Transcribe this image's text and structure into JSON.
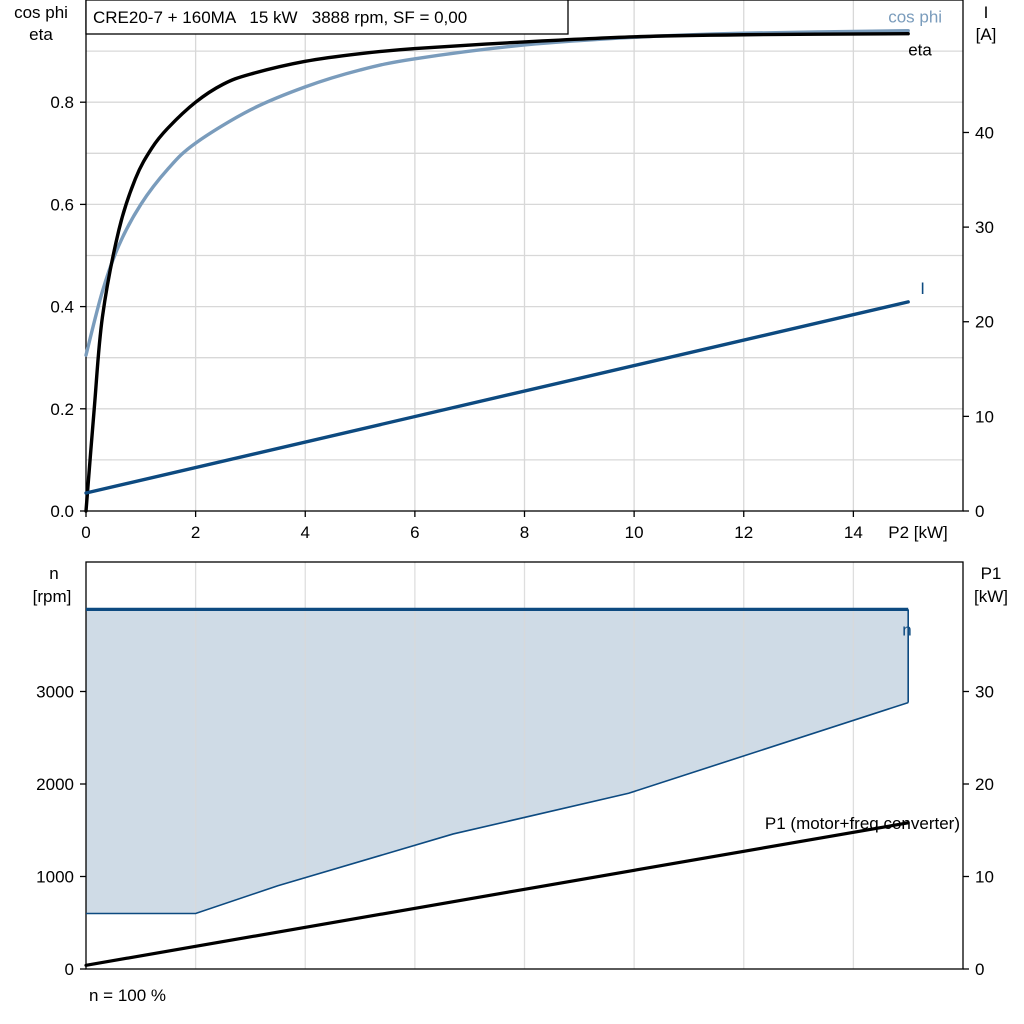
{
  "footer_note": "n = 100 %",
  "chart_data": [
    {
      "type": "line",
      "title": "CRE20-7 + 160MA   15 kW   3888 rpm, SF = 0,00",
      "xlabel": "P2 [kW]",
      "ylabel_left": [
        "cos phi",
        "eta"
      ],
      "ylabel_right": [
        "I",
        "[A]"
      ],
      "xlim": [
        0,
        16
      ],
      "ylim_left": [
        0,
        1
      ],
      "ylim_right": [
        0,
        54
      ],
      "x_ticks": [
        "0",
        "2",
        "4",
        "6",
        "8",
        "10",
        "12",
        "14"
      ],
      "y_ticks_left": [
        "0.0",
        "0.2",
        "0.4",
        "0.6",
        "0.8"
      ],
      "y_ticks_right": [
        "0",
        "10",
        "20",
        "30",
        "40"
      ],
      "grid": true,
      "series": [
        {
          "name": "eta",
          "axis": "left",
          "color": "#000000",
          "x": [
            0,
            0.15,
            0.3,
            0.6,
            0.9,
            1.2,
            1.5,
            2,
            2.5,
            3,
            4,
            5,
            6,
            8,
            10,
            12,
            15
          ],
          "y": [
            0.0,
            0.2,
            0.38,
            0.55,
            0.65,
            0.71,
            0.75,
            0.8,
            0.835,
            0.855,
            0.88,
            0.895,
            0.905,
            0.918,
            0.928,
            0.932,
            0.934
          ]
        },
        {
          "name": "cos phi",
          "axis": "left",
          "color": "#7a9cbc",
          "x": [
            0,
            0.3,
            0.6,
            1,
            1.5,
            2,
            3,
            4,
            5,
            6,
            8,
            10,
            12,
            15
          ],
          "y": [
            0.305,
            0.43,
            0.52,
            0.6,
            0.67,
            0.72,
            0.785,
            0.83,
            0.863,
            0.885,
            0.912,
            0.927,
            0.935,
            0.94
          ]
        },
        {
          "name": "I",
          "axis": "right",
          "color": "#0d4a80",
          "x": [
            0,
            15
          ],
          "y": [
            1.9,
            22.1
          ]
        }
      ]
    },
    {
      "type": "area",
      "xlabel": "",
      "ylabel_left": [
        "n",
        "[rpm]"
      ],
      "ylabel_right": [
        "P1",
        "[kW]"
      ],
      "xlim": [
        0,
        16
      ],
      "ylim_left": [
        0,
        4400
      ],
      "ylim_right": [
        0,
        44
      ],
      "y_ticks_left": [
        "0",
        "1000",
        "2000",
        "3000"
      ],
      "y_ticks_right": [
        "0",
        "10",
        "20",
        "30"
      ],
      "grid": true,
      "series": [
        {
          "name": "n",
          "axis": "left",
          "color": "#0d4a80",
          "fill": "#cfdbe6",
          "upper_x": [
            0,
            15
          ],
          "upper_y": [
            3888,
            3888
          ],
          "lower_x": [
            0,
            2,
            3.5,
            6.7,
            9.9,
            15
          ],
          "lower_y": [
            600,
            600,
            900,
            1460,
            1900,
            2880
          ]
        },
        {
          "name": "P1 (motor+freq converter)",
          "axis": "right",
          "color": "#000000",
          "x": [
            0,
            15
          ],
          "y": [
            0.4,
            15.8
          ]
        }
      ]
    }
  ]
}
